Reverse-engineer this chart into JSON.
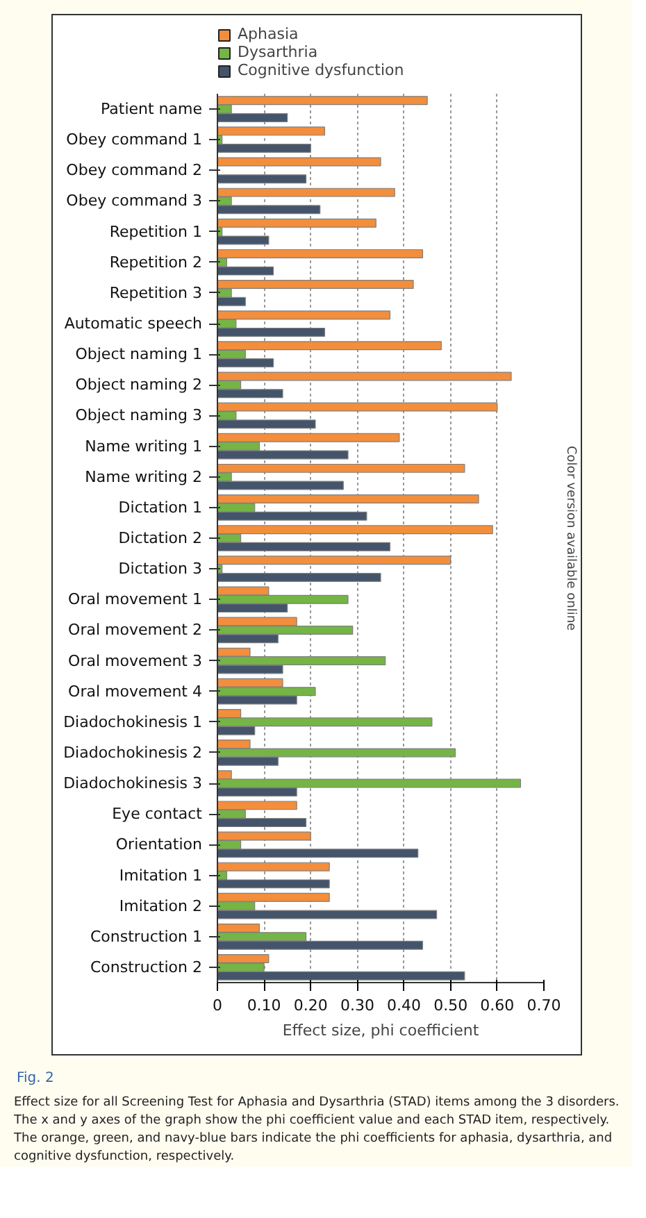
{
  "chart_data": {
    "type": "bar",
    "orientation": "horizontal",
    "xlabel": "Effect size, phi coefficient",
    "categories": [
      "Patient name",
      "Obey command 1",
      "Obey command 2",
      "Obey command 3",
      "Repetition 1",
      "Repetition 2",
      "Repetition 3",
      "Automatic speech",
      "Object naming 1",
      "Object naming 2",
      "Object naming 3",
      "Name writing 1",
      "Name writing 2",
      "Dictation 1",
      "Dictation 2",
      "Dictation 3",
      "Oral movement 1",
      "Oral movement 2",
      "Oral movement 3",
      "Oral movement 4",
      "Diadochokinesis 1",
      "Diadochokinesis 2",
      "Diadochokinesis 3",
      "Eye contact",
      "Orientation",
      "Imitation 1",
      "Imitation 2",
      "Construction 1",
      "Construction 2"
    ],
    "series": [
      {
        "name": "Aphasia",
        "color": "#f28e3c",
        "values": [
          0.45,
          0.23,
          0.35,
          0.38,
          0.34,
          0.44,
          0.42,
          0.37,
          0.48,
          0.63,
          0.6,
          0.39,
          0.53,
          0.56,
          0.59,
          0.5,
          0.11,
          0.17,
          0.07,
          0.14,
          0.05,
          0.07,
          0.03,
          0.17,
          0.2,
          0.24,
          0.24,
          0.09,
          0.11
        ]
      },
      {
        "name": "Dysarthria",
        "color": "#74b545",
        "values": [
          0.03,
          0.01,
          null,
          0.03,
          0.01,
          0.02,
          0.03,
          0.04,
          0.06,
          0.05,
          0.04,
          0.09,
          0.03,
          0.08,
          0.05,
          0.01,
          0.28,
          0.29,
          0.36,
          0.21,
          0.46,
          0.51,
          0.65,
          0.06,
          0.05,
          0.02,
          0.08,
          0.19,
          0.1
        ]
      },
      {
        "name": "Cognitive dysfunction",
        "color": "#44546a",
        "values": [
          0.15,
          0.2,
          0.19,
          0.22,
          0.11,
          0.12,
          0.06,
          0.23,
          0.12,
          0.14,
          0.21,
          0.28,
          0.27,
          0.32,
          0.37,
          0.35,
          0.15,
          0.13,
          0.14,
          0.17,
          0.08,
          0.13,
          0.17,
          0.19,
          0.43,
          0.24,
          0.47,
          0.44,
          0.53
        ]
      }
    ],
    "xlim": [
      0,
      0.7
    ],
    "xticks": [
      0,
      {
        "value": 0.1,
        "label": "0.10"
      },
      {
        "value": 0.2,
        "label": "0.20"
      },
      {
        "value": 0.3,
        "label": "0.30"
      },
      {
        "value": 0.4,
        "label": "0.40"
      },
      {
        "value": 0.5,
        "label": "0.50"
      },
      {
        "value": 0.6,
        "label": "0.60"
      },
      {
        "value": 0.7,
        "label": "0.70"
      }
    ],
    "grid": "x",
    "legend": "top",
    "annotations": [
      "Color version available online",
      "Fig. 2",
      "Effect size for all Screening Test for Aphasia and Dysarthria (STAD) items among the 3 disorders. The x and y axes of the graph show the phi coefficient value and each STAD item, respectively. The orange, green, and navy-blue bars indicate the phi coefficients for aphasia, dysarthria, and cognitive dysfunction, respectively."
    ]
  }
}
